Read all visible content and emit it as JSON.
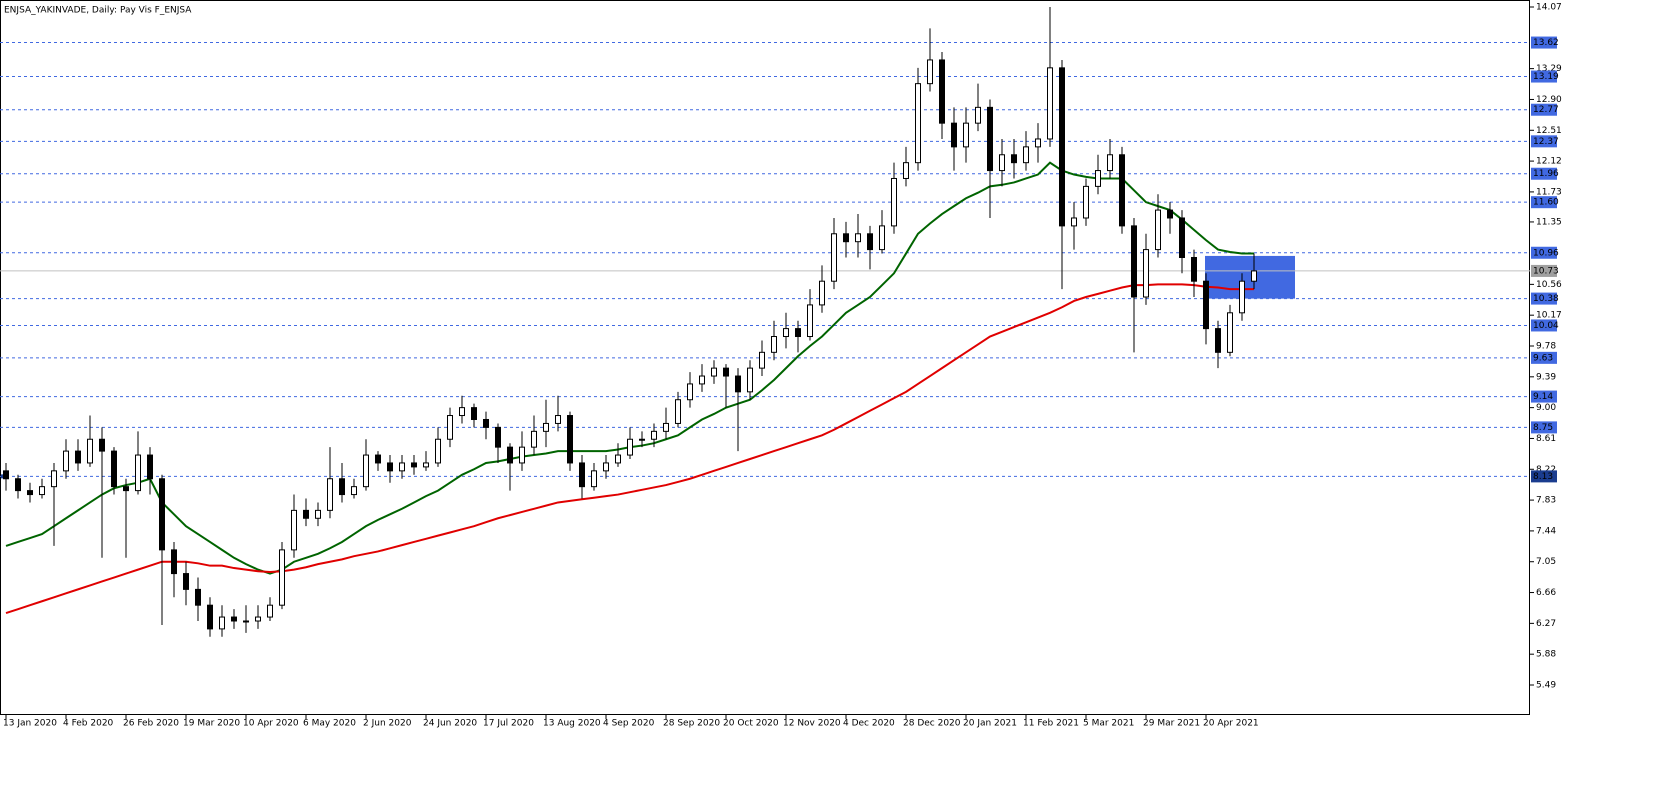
{
  "chart_data": {
    "type": "candlestick",
    "title": "ENJSA_YAKINVADE, Daily:  Pay Vis F_ENJSA",
    "categories": [
      "13 Jan 2020",
      null,
      null,
      null,
      null,
      "4 Feb 2020",
      null,
      null,
      null,
      null,
      "26 Feb 2020",
      null,
      null,
      null,
      null,
      "19 Mar 2020",
      null,
      null,
      null,
      null,
      "10 Apr 2020",
      null,
      null,
      null,
      null,
      "6 May 2020",
      null,
      null,
      null,
      null,
      "2 Jun 2020",
      null,
      null,
      null,
      null,
      "24 Jun 2020",
      null,
      null,
      null,
      null,
      "17 Jul 2020",
      null,
      null,
      null,
      null,
      "13 Aug 2020",
      null,
      null,
      null,
      null,
      "4 Sep 2020",
      null,
      null,
      null,
      null,
      "28 Sep 2020",
      null,
      null,
      null,
      null,
      "20 Oct 2020",
      null,
      null,
      null,
      null,
      "12 Nov 2020",
      null,
      null,
      null,
      null,
      "4 Dec 2020",
      null,
      null,
      null,
      null,
      "28 Dec 2020",
      null,
      null,
      null,
      null,
      "20 Jan 2021",
      null,
      null,
      null,
      null,
      "11 Feb 2021",
      null,
      null,
      null,
      null,
      "5 Mar 2021",
      null,
      null,
      null,
      null,
      "29 Mar 2021",
      null,
      null,
      null,
      null,
      "20 Apr 2021",
      null,
      null,
      null,
      null
    ],
    "candles": [
      [
        8.2,
        8.3,
        7.95,
        8.1
      ],
      [
        8.1,
        8.15,
        7.85,
        7.95
      ],
      [
        7.95,
        8.05,
        7.8,
        7.9
      ],
      [
        7.9,
        8.1,
        7.85,
        8.0
      ],
      [
        8.0,
        8.3,
        7.25,
        8.2
      ],
      [
        8.2,
        8.6,
        8.1,
        8.45
      ],
      [
        8.45,
        8.6,
        8.2,
        8.3
      ],
      [
        8.3,
        8.9,
        8.25,
        8.6
      ],
      [
        8.6,
        8.75,
        7.1,
        8.45
      ],
      [
        8.45,
        8.5,
        7.9,
        8.0
      ],
      [
        8.0,
        8.1,
        7.1,
        7.95
      ],
      [
        7.95,
        8.7,
        7.9,
        8.4
      ],
      [
        8.4,
        8.5,
        7.9,
        8.1
      ],
      [
        8.1,
        8.15,
        6.25,
        7.2
      ],
      [
        7.2,
        7.3,
        6.6,
        6.9
      ],
      [
        6.9,
        7.05,
        6.5,
        6.7
      ],
      [
        6.7,
        6.85,
        6.3,
        6.5
      ],
      [
        6.5,
        6.6,
        6.1,
        6.2
      ],
      [
        6.2,
        6.5,
        6.1,
        6.35
      ],
      [
        6.35,
        6.45,
        6.2,
        6.3
      ],
      [
        6.3,
        6.5,
        6.15,
        6.3
      ],
      [
        6.3,
        6.5,
        6.2,
        6.35
      ],
      [
        6.35,
        6.6,
        6.3,
        6.5
      ],
      [
        6.5,
        7.3,
        6.45,
        7.2
      ],
      [
        7.2,
        7.9,
        7.1,
        7.7
      ],
      [
        7.7,
        7.85,
        7.5,
        7.6
      ],
      [
        7.6,
        7.8,
        7.5,
        7.7
      ],
      [
        7.7,
        8.5,
        7.6,
        8.1
      ],
      [
        8.1,
        8.3,
        7.8,
        7.9
      ],
      [
        7.9,
        8.1,
        7.85,
        8.0
      ],
      [
        8.0,
        8.6,
        7.95,
        8.4
      ],
      [
        8.4,
        8.45,
        8.2,
        8.3
      ],
      [
        8.3,
        8.4,
        8.05,
        8.2
      ],
      [
        8.2,
        8.4,
        8.1,
        8.3
      ],
      [
        8.3,
        8.4,
        8.15,
        8.25
      ],
      [
        8.25,
        8.45,
        8.2,
        8.3
      ],
      [
        8.3,
        8.75,
        8.25,
        8.6
      ],
      [
        8.6,
        9.0,
        8.5,
        8.9
      ],
      [
        8.9,
        9.15,
        8.8,
        9.0
      ],
      [
        9.0,
        9.05,
        8.75,
        8.85
      ],
      [
        8.85,
        8.95,
        8.6,
        8.75
      ],
      [
        8.75,
        8.8,
        8.3,
        8.5
      ],
      [
        8.5,
        8.55,
        7.95,
        8.3
      ],
      [
        8.3,
        8.7,
        8.2,
        8.5
      ],
      [
        8.5,
        8.9,
        8.4,
        8.7
      ],
      [
        8.7,
        9.1,
        8.5,
        8.8
      ],
      [
        8.8,
        9.15,
        8.7,
        8.9
      ],
      [
        8.9,
        8.95,
        8.2,
        8.3
      ],
      [
        8.3,
        8.4,
        7.85,
        8.0
      ],
      [
        8.0,
        8.3,
        7.95,
        8.2
      ],
      [
        8.2,
        8.4,
        8.1,
        8.3
      ],
      [
        8.3,
        8.55,
        8.25,
        8.4
      ],
      [
        8.4,
        8.75,
        8.35,
        8.6
      ],
      [
        8.6,
        8.7,
        8.5,
        8.6
      ],
      [
        8.6,
        8.8,
        8.5,
        8.7
      ],
      [
        8.7,
        9.0,
        8.6,
        8.8
      ],
      [
        8.8,
        9.2,
        8.75,
        9.1
      ],
      [
        9.1,
        9.45,
        9.0,
        9.3
      ],
      [
        9.3,
        9.55,
        9.2,
        9.4
      ],
      [
        9.4,
        9.6,
        9.3,
        9.5
      ],
      [
        9.5,
        9.55,
        9.0,
        9.4
      ],
      [
        9.4,
        9.5,
        8.45,
        9.2
      ],
      [
        9.2,
        9.6,
        9.1,
        9.5
      ],
      [
        9.5,
        9.85,
        9.4,
        9.7
      ],
      [
        9.7,
        10.1,
        9.6,
        9.9
      ],
      [
        9.9,
        10.2,
        9.75,
        10.0
      ],
      [
        10.0,
        10.1,
        9.7,
        9.9
      ],
      [
        9.9,
        10.5,
        9.85,
        10.3
      ],
      [
        10.3,
        10.8,
        10.2,
        10.6
      ],
      [
        10.6,
        11.4,
        10.5,
        11.2
      ],
      [
        11.2,
        11.35,
        10.9,
        11.1
      ],
      [
        11.1,
        11.45,
        10.9,
        11.2
      ],
      [
        11.2,
        11.3,
        10.75,
        11.0
      ],
      [
        11.0,
        11.5,
        10.95,
        11.3
      ],
      [
        11.3,
        12.1,
        11.2,
        11.9
      ],
      [
        11.9,
        12.3,
        11.8,
        12.1
      ],
      [
        12.1,
        13.3,
        12.0,
        13.1
      ],
      [
        13.1,
        13.8,
        13.0,
        13.4
      ],
      [
        13.4,
        13.5,
        12.4,
        12.6
      ],
      [
        12.6,
        12.8,
        12.0,
        12.3
      ],
      [
        12.3,
        12.8,
        12.1,
        12.6
      ],
      [
        12.6,
        13.1,
        12.5,
        12.8
      ],
      [
        12.8,
        12.9,
        11.4,
        12.0
      ],
      [
        12.0,
        12.4,
        11.8,
        12.2
      ],
      [
        12.2,
        12.4,
        11.9,
        12.1
      ],
      [
        12.1,
        12.5,
        12.0,
        12.3
      ],
      [
        12.3,
        12.6,
        12.1,
        12.4
      ],
      [
        12.4,
        14.07,
        12.3,
        13.3
      ],
      [
        13.3,
        13.4,
        10.5,
        11.3
      ],
      [
        11.3,
        11.6,
        11.0,
        11.4
      ],
      [
        11.4,
        11.9,
        11.3,
        11.8
      ],
      [
        11.8,
        12.2,
        11.7,
        12.0
      ],
      [
        12.0,
        12.4,
        11.9,
        12.2
      ],
      [
        12.2,
        12.3,
        11.2,
        11.3
      ],
      [
        11.3,
        11.4,
        9.7,
        10.4
      ],
      [
        10.4,
        11.2,
        10.3,
        11.0
      ],
      [
        11.0,
        11.7,
        10.9,
        11.5
      ],
      [
        11.5,
        11.6,
        11.2,
        11.4
      ],
      [
        11.4,
        11.5,
        10.7,
        10.9
      ],
      [
        10.9,
        11.0,
        10.4,
        10.6
      ],
      [
        10.6,
        10.7,
        9.8,
        10.0
      ],
      [
        10.0,
        10.1,
        9.5,
        9.7
      ],
      [
        9.7,
        10.3,
        9.65,
        10.2
      ],
      [
        10.2,
        10.7,
        10.1,
        10.6
      ],
      [
        10.6,
        10.95,
        10.5,
        10.73
      ]
    ],
    "lines": [
      {
        "color": "#006400",
        "values": [
          7.25,
          7.3,
          7.35,
          7.4,
          7.5,
          7.6,
          7.7,
          7.8,
          7.9,
          7.98,
          8.02,
          8.05,
          8.1,
          7.8,
          7.65,
          7.5,
          7.4,
          7.3,
          7.2,
          7.1,
          7.02,
          6.95,
          6.9,
          6.95,
          7.05,
          7.1,
          7.15,
          7.22,
          7.3,
          7.4,
          7.5,
          7.58,
          7.65,
          7.72,
          7.8,
          7.88,
          7.95,
          8.05,
          8.15,
          8.22,
          8.3,
          8.32,
          8.35,
          8.38,
          8.4,
          8.42,
          8.45,
          8.45,
          8.45,
          8.45,
          8.45,
          8.47,
          8.5,
          8.52,
          8.55,
          8.6,
          8.65,
          8.75,
          8.85,
          8.92,
          9.0,
          9.05,
          9.1,
          9.22,
          9.35,
          9.5,
          9.65,
          9.78,
          9.9,
          10.05,
          10.2,
          10.3,
          10.4,
          10.55,
          10.7,
          10.95,
          11.2,
          11.33,
          11.45,
          11.55,
          11.65,
          11.72,
          11.8,
          11.82,
          11.85,
          11.9,
          11.95,
          12.1,
          12.0,
          11.95,
          11.92,
          11.9,
          11.9,
          11.9,
          11.75,
          11.6,
          11.55,
          11.5,
          11.38,
          11.25,
          11.12,
          11.0,
          10.97,
          10.95,
          10.95
        ]
      },
      {
        "color": "#e00000",
        "values": [
          6.4,
          6.45,
          6.5,
          6.55,
          6.6,
          6.65,
          6.7,
          6.75,
          6.8,
          6.85,
          6.9,
          6.95,
          7.0,
          7.05,
          7.05,
          7.05,
          7.03,
          7.0,
          7.0,
          6.97,
          6.95,
          6.93,
          6.92,
          6.93,
          6.95,
          6.98,
          7.02,
          7.05,
          7.08,
          7.12,
          7.15,
          7.18,
          7.22,
          7.26,
          7.3,
          7.34,
          7.38,
          7.42,
          7.46,
          7.5,
          7.55,
          7.6,
          7.64,
          7.68,
          7.72,
          7.76,
          7.8,
          7.82,
          7.84,
          7.86,
          7.88,
          7.9,
          7.93,
          7.96,
          7.99,
          8.02,
          8.06,
          8.1,
          8.15,
          8.2,
          8.25,
          8.3,
          8.35,
          8.4,
          8.45,
          8.5,
          8.55,
          8.6,
          8.65,
          8.72,
          8.8,
          8.88,
          8.96,
          9.04,
          9.12,
          9.2,
          9.3,
          9.4,
          9.5,
          9.6,
          9.7,
          9.8,
          9.9,
          9.96,
          10.02,
          10.08,
          10.14,
          10.2,
          10.27,
          10.35,
          10.4,
          10.44,
          10.48,
          10.52,
          10.55,
          10.55,
          10.56,
          10.56,
          10.56,
          10.55,
          10.53,
          10.52,
          10.5,
          10.5,
          10.5
        ]
      }
    ],
    "ylim": [
      5.49,
      14.07
    ],
    "yticks": [
      14.07,
      13.29,
      {
        "value": 12.9,
        "label": "12.90"
      },
      12.51,
      12.12,
      11.73,
      11.35,
      10.56,
      10.17,
      9.78,
      9.39,
      {
        "value": 9,
        "label": "9.00"
      },
      8.61,
      8.22,
      7.83,
      7.44,
      7.05,
      6.66,
      6.27,
      5.88,
      5.49
    ],
    "levels": [
      13.62,
      13.19,
      12.77,
      12.37,
      11.96,
      {
        "value": 11.6,
        "label": "11.60"
      },
      {
        "value": 10.96,
        "label": "10.96"
      },
      {
        "value": 10.38,
        "label": "10.38"
      },
      10.04,
      9.63,
      9.14,
      8.75
    ],
    "level_color": "#4169e1",
    "marker_level": 8.13,
    "marker_color": "#1a3c8e",
    "price_line": 10.73,
    "price_color": "#a0a0a0",
    "zone": {
      "ylim": [
        10.38,
        10.92
      ],
      "color": "#4169e1"
    }
  }
}
